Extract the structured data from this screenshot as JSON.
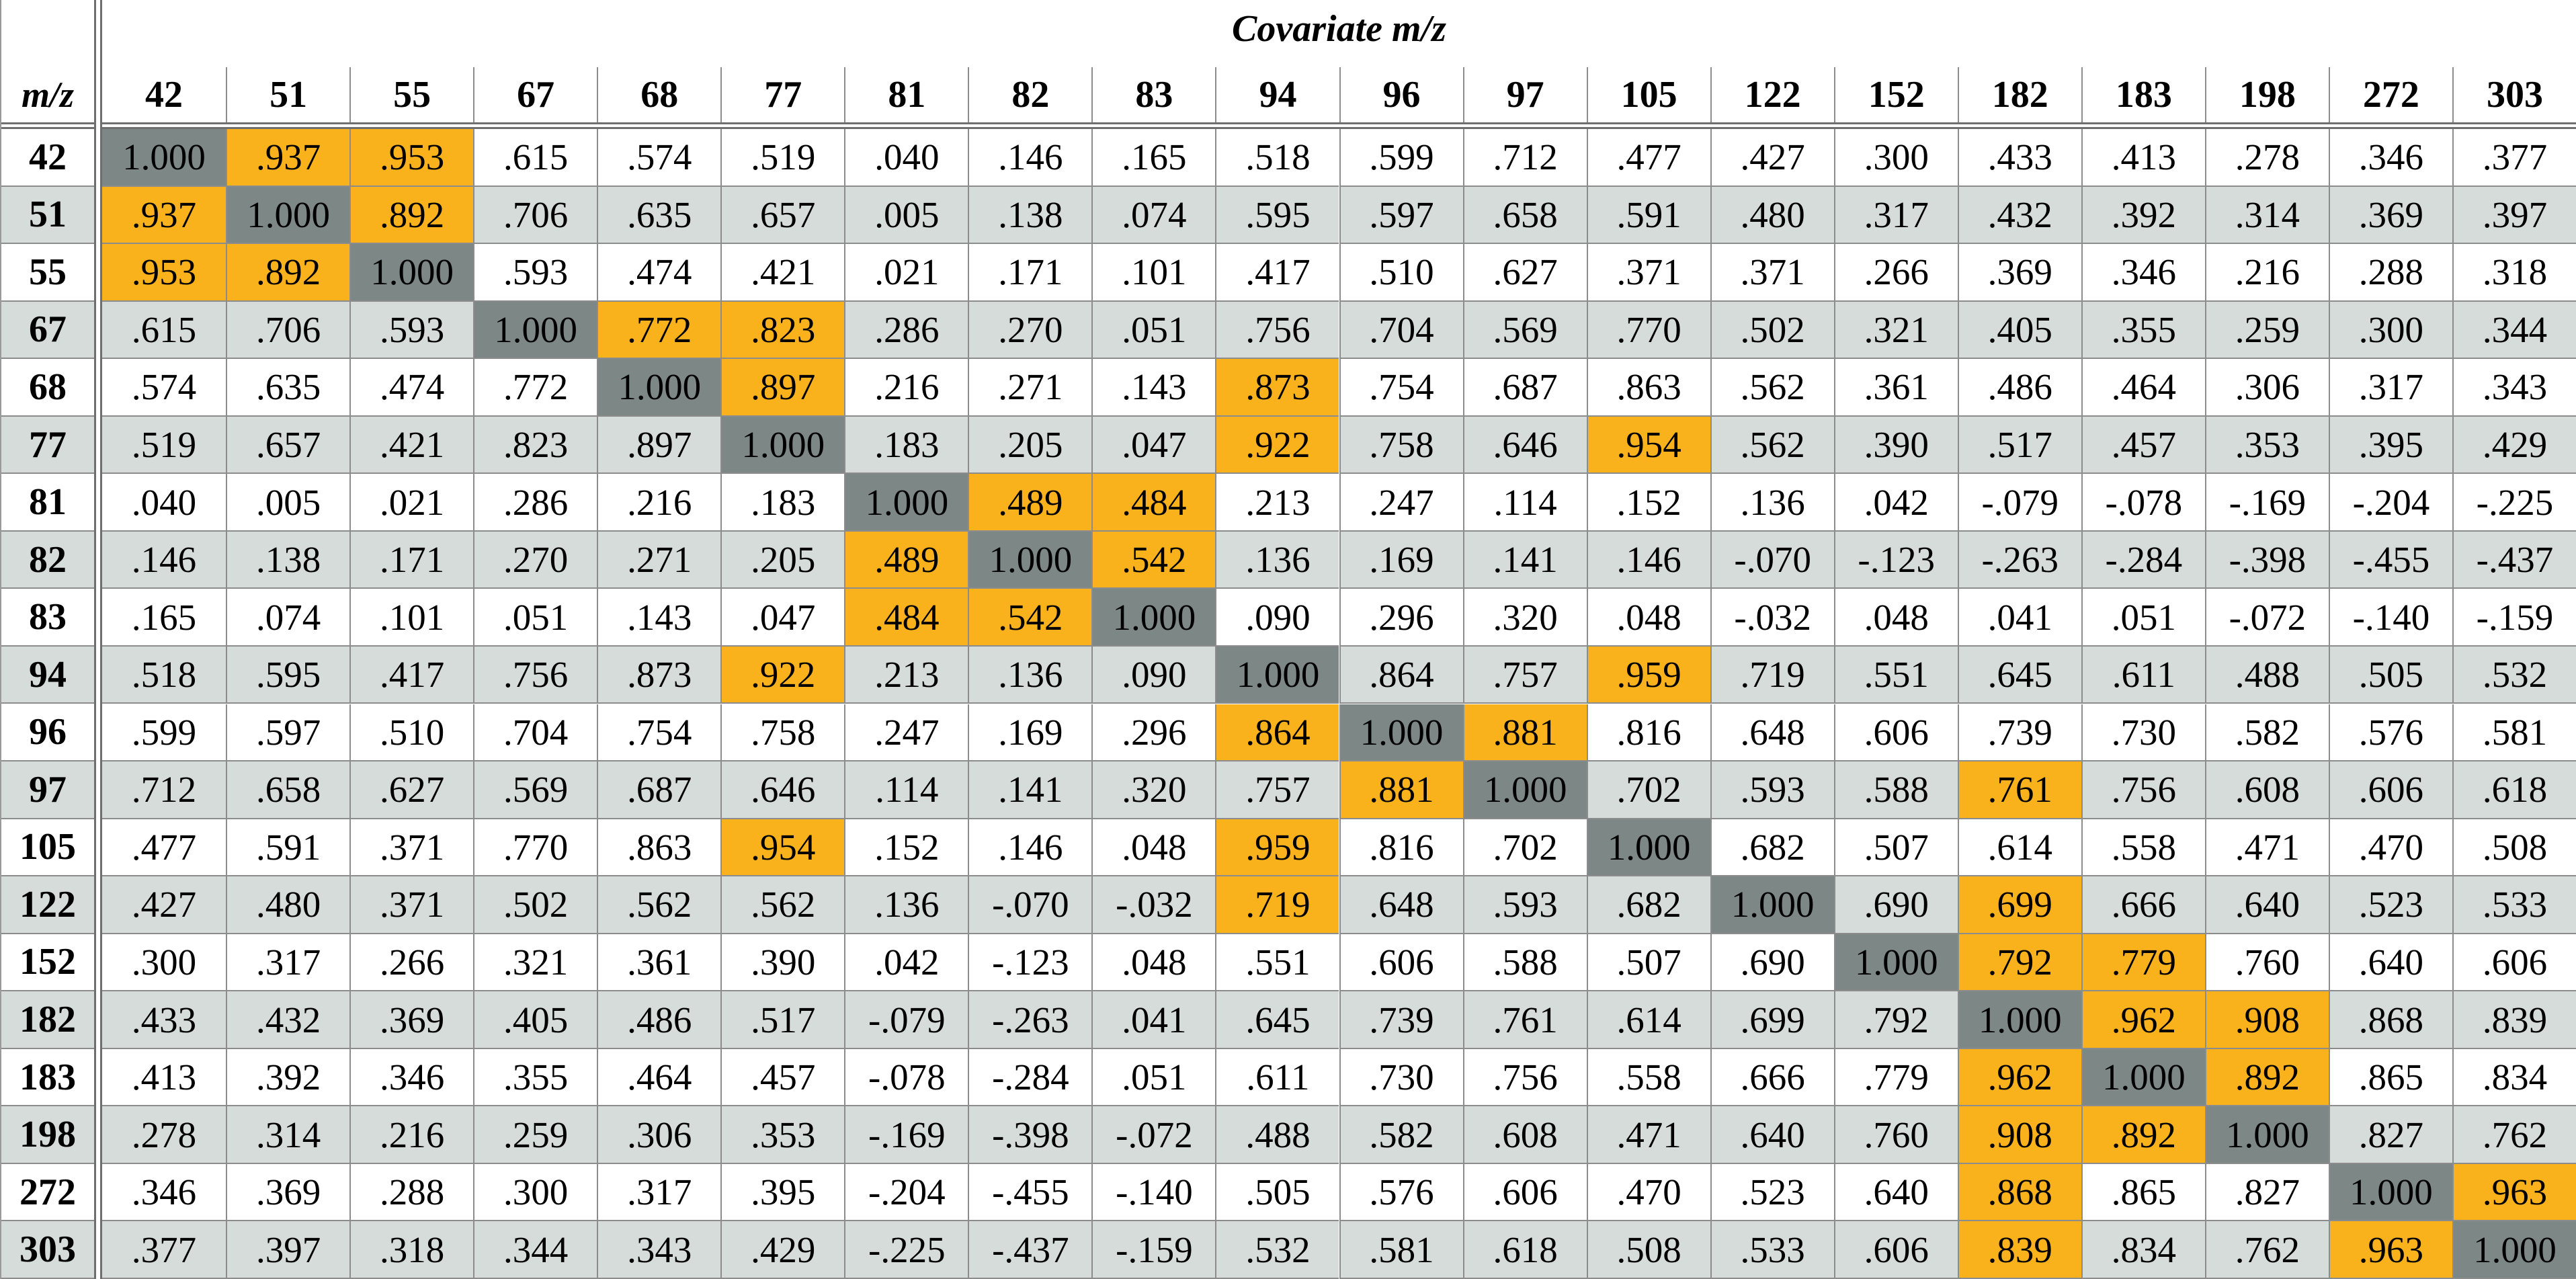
{
  "table": {
    "title": "Covariate m/z",
    "row_axis_label": "m/z",
    "columns": [
      "42",
      "51",
      "55",
      "67",
      "68",
      "77",
      "81",
      "82",
      "83",
      "94",
      "96",
      "97",
      "105",
      "122",
      "152",
      "182",
      "183",
      "198",
      "272",
      "303"
    ],
    "rows": [
      {
        "label": "42",
        "values": [
          "1.000",
          ".937",
          ".953",
          ".615",
          ".574",
          ".519",
          ".040",
          ".146",
          ".165",
          ".518",
          ".599",
          ".712",
          ".477",
          ".427",
          ".300",
          ".433",
          ".413",
          ".278",
          ".346",
          ".377"
        ]
      },
      {
        "label": "51",
        "values": [
          ".937",
          "1.000",
          ".892",
          ".706",
          ".635",
          ".657",
          ".005",
          ".138",
          ".074",
          ".595",
          ".597",
          ".658",
          ".591",
          ".480",
          ".317",
          ".432",
          ".392",
          ".314",
          ".369",
          ".397"
        ]
      },
      {
        "label": "55",
        "values": [
          ".953",
          ".892",
          "1.000",
          ".593",
          ".474",
          ".421",
          ".021",
          ".171",
          ".101",
          ".417",
          ".510",
          ".627",
          ".371",
          ".371",
          ".266",
          ".369",
          ".346",
          ".216",
          ".288",
          ".318"
        ]
      },
      {
        "label": "67",
        "values": [
          ".615",
          ".706",
          ".593",
          "1.000",
          ".772",
          ".823",
          ".286",
          ".270",
          ".051",
          ".756",
          ".704",
          ".569",
          ".770",
          ".502",
          ".321",
          ".405",
          ".355",
          ".259",
          ".300",
          ".344"
        ]
      },
      {
        "label": "68",
        "values": [
          ".574",
          ".635",
          ".474",
          ".772",
          "1.000",
          ".897",
          ".216",
          ".271",
          ".143",
          ".873",
          ".754",
          ".687",
          ".863",
          ".562",
          ".361",
          ".486",
          ".464",
          ".306",
          ".317",
          ".343"
        ]
      },
      {
        "label": "77",
        "values": [
          ".519",
          ".657",
          ".421",
          ".823",
          ".897",
          "1.000",
          ".183",
          ".205",
          ".047",
          ".922",
          ".758",
          ".646",
          ".954",
          ".562",
          ".390",
          ".517",
          ".457",
          ".353",
          ".395",
          ".429"
        ]
      },
      {
        "label": "81",
        "values": [
          ".040",
          ".005",
          ".021",
          ".286",
          ".216",
          ".183",
          "1.000",
          ".489",
          ".484",
          ".213",
          ".247",
          ".114",
          ".152",
          ".136",
          ".042",
          "-.079",
          "-.078",
          "-.169",
          "-.204",
          "-.225"
        ]
      },
      {
        "label": "82",
        "values": [
          ".146",
          ".138",
          ".171",
          ".270",
          ".271",
          ".205",
          ".489",
          "1.000",
          ".542",
          ".136",
          ".169",
          ".141",
          ".146",
          "-.070",
          "-.123",
          "-.263",
          "-.284",
          "-.398",
          "-.455",
          "-.437"
        ]
      },
      {
        "label": "83",
        "values": [
          ".165",
          ".074",
          ".101",
          ".051",
          ".143",
          ".047",
          ".484",
          ".542",
          "1.000",
          ".090",
          ".296",
          ".320",
          ".048",
          "-.032",
          ".048",
          ".041",
          ".051",
          "-.072",
          "-.140",
          "-.159"
        ]
      },
      {
        "label": "94",
        "values": [
          ".518",
          ".595",
          ".417",
          ".756",
          ".873",
          ".922",
          ".213",
          ".136",
          ".090",
          "1.000",
          ".864",
          ".757",
          ".959",
          ".719",
          ".551",
          ".645",
          ".611",
          ".488",
          ".505",
          ".532"
        ]
      },
      {
        "label": "96",
        "values": [
          ".599",
          ".597",
          ".510",
          ".704",
          ".754",
          ".758",
          ".247",
          ".169",
          ".296",
          ".864",
          "1.000",
          ".881",
          ".816",
          ".648",
          ".606",
          ".739",
          ".730",
          ".582",
          ".576",
          ".581"
        ]
      },
      {
        "label": "97",
        "values": [
          ".712",
          ".658",
          ".627",
          ".569",
          ".687",
          ".646",
          ".114",
          ".141",
          ".320",
          ".757",
          ".881",
          "1.000",
          ".702",
          ".593",
          ".588",
          ".761",
          ".756",
          ".608",
          ".606",
          ".618"
        ]
      },
      {
        "label": "105",
        "values": [
          ".477",
          ".591",
          ".371",
          ".770",
          ".863",
          ".954",
          ".152",
          ".146",
          ".048",
          ".959",
          ".816",
          ".702",
          "1.000",
          ".682",
          ".507",
          ".614",
          ".558",
          ".471",
          ".470",
          ".508"
        ]
      },
      {
        "label": "122",
        "values": [
          ".427",
          ".480",
          ".371",
          ".502",
          ".562",
          ".562",
          ".136",
          "-.070",
          "-.032",
          ".719",
          ".648",
          ".593",
          ".682",
          "1.000",
          ".690",
          ".699",
          ".666",
          ".640",
          ".523",
          ".533"
        ]
      },
      {
        "label": "152",
        "values": [
          ".300",
          ".317",
          ".266",
          ".321",
          ".361",
          ".390",
          ".042",
          "-.123",
          ".048",
          ".551",
          ".606",
          ".588",
          ".507",
          ".690",
          "1.000",
          ".792",
          ".779",
          ".760",
          ".640",
          ".606"
        ]
      },
      {
        "label": "182",
        "values": [
          ".433",
          ".432",
          ".369",
          ".405",
          ".486",
          ".517",
          "-.079",
          "-.263",
          ".041",
          ".645",
          ".739",
          ".761",
          ".614",
          ".699",
          ".792",
          "1.000",
          ".962",
          ".908",
          ".868",
          ".839"
        ]
      },
      {
        "label": "183",
        "values": [
          ".413",
          ".392",
          ".346",
          ".355",
          ".464",
          ".457",
          "-.078",
          "-.284",
          ".051",
          ".611",
          ".730",
          ".756",
          ".558",
          ".666",
          ".779",
          ".962",
          "1.000",
          ".892",
          ".865",
          ".834"
        ]
      },
      {
        "label": "198",
        "values": [
          ".278",
          ".314",
          ".216",
          ".259",
          ".306",
          ".353",
          "-.169",
          "-.398",
          "-.072",
          ".488",
          ".582",
          ".608",
          ".471",
          ".640",
          ".760",
          ".908",
          ".892",
          "1.000",
          ".827",
          ".762"
        ]
      },
      {
        "label": "272",
        "values": [
          ".346",
          ".369",
          ".288",
          ".300",
          ".317",
          ".395",
          "-.204",
          "-.455",
          "-.140",
          ".505",
          ".576",
          ".606",
          ".470",
          ".523",
          ".640",
          ".868",
          ".865",
          ".827",
          "1.000",
          ".963"
        ]
      },
      {
        "label": "303",
        "values": [
          ".377",
          ".397",
          ".318",
          ".344",
          ".343",
          ".429",
          "-.225",
          "-.437",
          "-.159",
          ".532",
          ".581",
          ".618",
          ".508",
          ".533",
          ".606",
          ".839",
          ".834",
          ".762",
          ".963",
          "1.000"
        ]
      }
    ],
    "highlights": [
      [
        0,
        1
      ],
      [
        0,
        2
      ],
      [
        1,
        0
      ],
      [
        1,
        2
      ],
      [
        2,
        0
      ],
      [
        2,
        1
      ],
      [
        3,
        4
      ],
      [
        3,
        5
      ],
      [
        4,
        5
      ],
      [
        4,
        9
      ],
      [
        5,
        9
      ],
      [
        5,
        12
      ],
      [
        6,
        7
      ],
      [
        6,
        8
      ],
      [
        7,
        6
      ],
      [
        7,
        8
      ],
      [
        8,
        6
      ],
      [
        8,
        7
      ],
      [
        9,
        5
      ],
      [
        9,
        12
      ],
      [
        10,
        9
      ],
      [
        10,
        11
      ],
      [
        11,
        10
      ],
      [
        11,
        15
      ],
      [
        12,
        5
      ],
      [
        12,
        9
      ],
      [
        13,
        9
      ],
      [
        13,
        15
      ],
      [
        14,
        15
      ],
      [
        14,
        16
      ],
      [
        15,
        16
      ],
      [
        15,
        17
      ],
      [
        16,
        15
      ],
      [
        16,
        17
      ],
      [
        17,
        15
      ],
      [
        17,
        16
      ],
      [
        18,
        15
      ],
      [
        18,
        19
      ],
      [
        19,
        15
      ],
      [
        19,
        18
      ]
    ],
    "colors": {
      "diagonal": "#7d8786",
      "highlight": "#f9b21b",
      "stripe": "#d5dcda",
      "plain": "#ffffff",
      "grid_line": "#8c8c8c"
    }
  }
}
